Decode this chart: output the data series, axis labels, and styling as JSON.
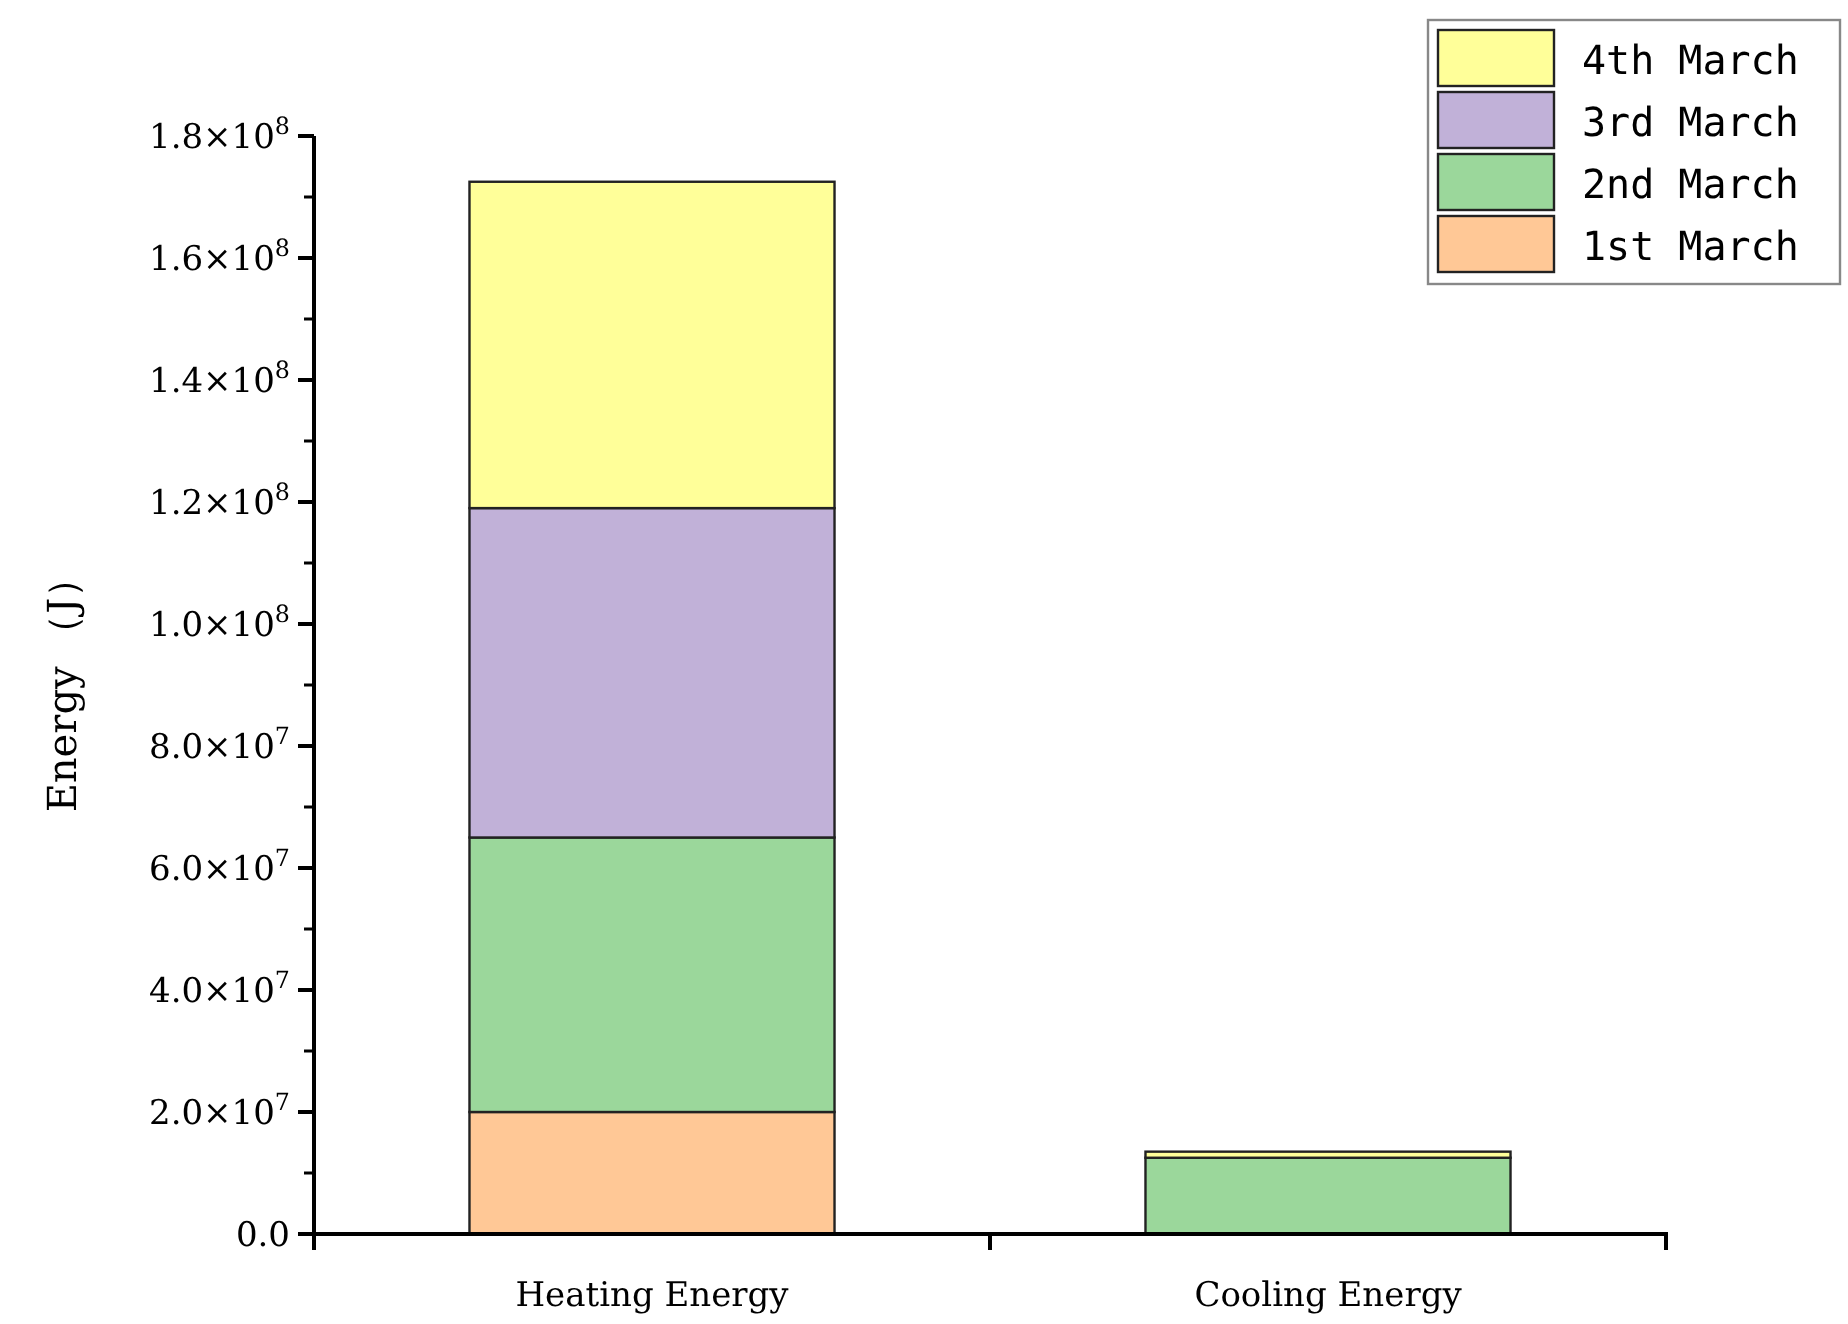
{
  "chart_data": {
    "type": "bar",
    "stacked": true,
    "ylabel": "Energy （J）",
    "categories": [
      "Heating Energy",
      "Cooling Energy"
    ],
    "series": [
      {
        "name": "1st March",
        "color": "#ffc896",
        "values": [
          20000000,
          0
        ]
      },
      {
        "name": "2nd March",
        "color": "#9bd79b",
        "values": [
          45000000,
          12500000
        ]
      },
      {
        "name": "3rd March",
        "color": "#c1b1d8",
        "values": [
          54000000,
          0
        ]
      },
      {
        "name": "4th March",
        "color": "#ffff99",
        "values": [
          53500000,
          1000000
        ]
      }
    ],
    "ylim": [
      0,
      180000000
    ],
    "yticks": [
      {
        "value": 0,
        "label": "0.0"
      },
      {
        "value": 20000000,
        "label": "2.0×10$^{7}$"
      },
      {
        "value": 40000000,
        "label": "4.0×10$^{7}$"
      },
      {
        "value": 60000000,
        "label": "6.0×10$^{7}$"
      },
      {
        "value": 80000000,
        "label": "8.0×10$^{7}$"
      },
      {
        "value": 100000000,
        "label": "1.0×10$^{8}$"
      },
      {
        "value": 120000000,
        "label": "1.2×10$^{8}$"
      },
      {
        "value": 140000000,
        "label": "1.4×10$^{8}$"
      },
      {
        "value": 160000000,
        "label": "1.6×10$^{8}$"
      },
      {
        "value": 180000000,
        "label": "1.8×10$^{8}$"
      }
    ],
    "legend": "top right",
    "grid": false
  }
}
